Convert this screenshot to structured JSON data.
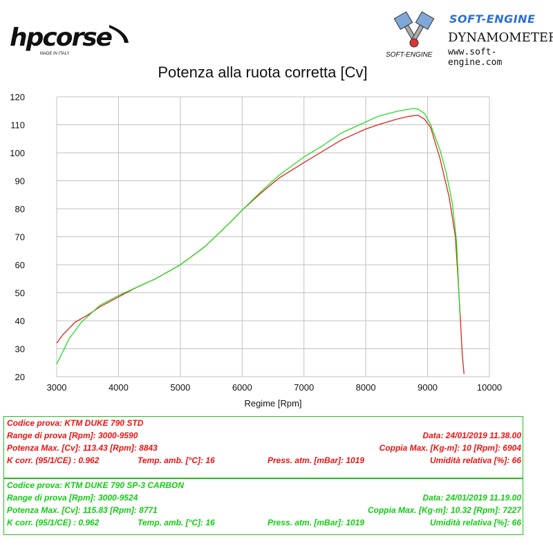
{
  "header": {
    "hp_logo_text": "hpcorse",
    "hp_logo_sub": "MADE IN ITALY",
    "se_title": "SOFT-ENGINE",
    "se_dyn": "DYNAMOMETERS",
    "se_url": "www.soft-engine.com",
    "se_mini": "SOFT-ENGINE"
  },
  "colors": {
    "std": "#e0201a",
    "carbon": "#22dd22",
    "grid": "#c0c0c0"
  },
  "chart_data": {
    "type": "line",
    "title": "Potenza alla ruota corretta [Cv]",
    "xlabel": "Regime [Rpm]",
    "ylabel": "",
    "xlim": [
      3000,
      10000
    ],
    "ylim": [
      20,
      120
    ],
    "xticks": [
      3000,
      4000,
      5000,
      6000,
      7000,
      8000,
      9000,
      10000
    ],
    "yticks": [
      20,
      30,
      40,
      50,
      60,
      70,
      80,
      90,
      100,
      110,
      120
    ],
    "grid": true,
    "series": [
      {
        "id": "std",
        "x": [
          3000,
          3100,
          3300,
          3500,
          3700,
          4000,
          4300,
          4600,
          5000,
          5400,
          5800,
          6000,
          6300,
          6600,
          7000,
          7300,
          7600,
          8000,
          8200,
          8500,
          8700,
          8843,
          8950,
          9050,
          9200,
          9350,
          9450,
          9520,
          9560,
          9590
        ],
        "y": [
          32,
          35,
          39.5,
          42,
          45,
          48.5,
          52,
          55,
          60,
          66.5,
          75,
          79.5,
          85.5,
          91,
          96.5,
          100.5,
          104.5,
          108.5,
          110,
          112,
          113,
          113.43,
          112,
          109,
          98,
          84,
          70,
          45,
          28,
          21
        ]
      },
      {
        "id": "carbon",
        "x": [
          3000,
          3200,
          3400,
          3700,
          4000,
          4300,
          4600,
          5000,
          5400,
          5800,
          6000,
          6300,
          6600,
          7000,
          7300,
          7600,
          8000,
          8200,
          8500,
          8771,
          8850,
          8950,
          9050,
          9200,
          9300,
          9400,
          9470,
          9524
        ],
        "y": [
          24.5,
          33.5,
          39.5,
          45.5,
          49,
          52,
          55,
          60,
          66.5,
          75,
          79.5,
          86,
          92,
          98.5,
          102.5,
          107,
          111,
          113,
          114.8,
          115.83,
          115.5,
          114,
          110,
          101,
          93,
          82,
          68,
          42
        ]
      }
    ]
  },
  "tests": [
    {
      "codice": "Codice prova: KTM DUKE 790  STD",
      "range": "Range di prova [Rpm]: 3000-9590",
      "data": "Data: 24/01/2019   11.38.00",
      "potenza": "Potenza Max. [Cv]: 113.43   [Rpm]: 8843",
      "coppia": "Coppia Max. [Kg-m]: 10   [Rpm]: 6904",
      "kcorr": "K corr. (95/1/CE) : 0.962",
      "temp": "Temp. amb. [°C]: 16",
      "press": "Press. atm. [mBar]: 1019",
      "umidita": "Umidità relativa [%]: 66"
    },
    {
      "codice": "Codice prova: KTM DUKE 790  SP-3 CARBON",
      "range": "Range di prova [Rpm]: 3000-9524",
      "data": "Data: 24/01/2019   11.19.00",
      "potenza": "Potenza Max. [Cv]: 115.83   [Rpm]: 8771",
      "coppia": "Coppia Max. [Kg-m]: 10.32   [Rpm]: 7227",
      "kcorr": "K corr. (95/1/CE) : 0.962",
      "temp": "Temp. amb. [°C]: 16",
      "press": "Press. atm. [mBar]: 1019",
      "umidita": "Umidità relativa [%]: 66"
    }
  ]
}
